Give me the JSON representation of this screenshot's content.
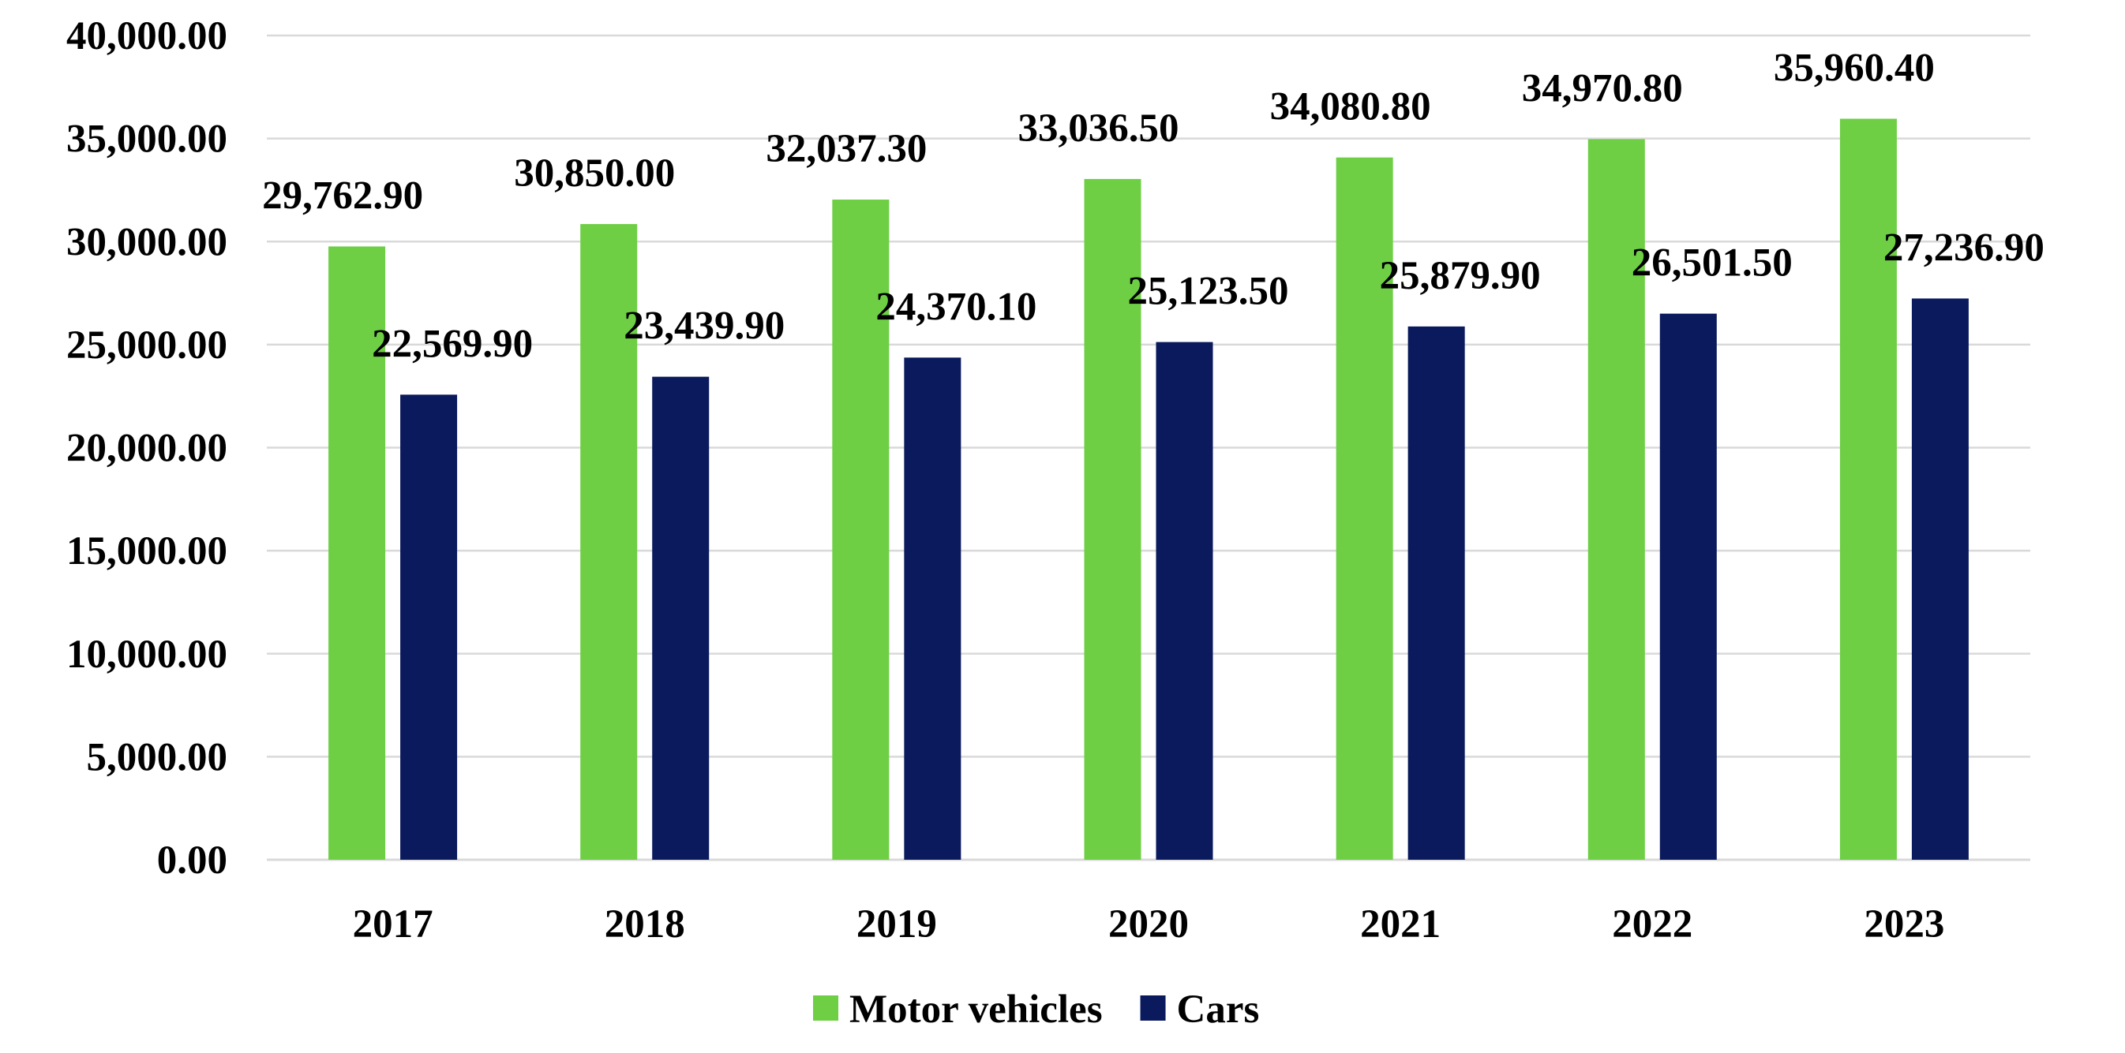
{
  "chart_data": {
    "type": "bar",
    "title": "",
    "xlabel": "",
    "ylabel": "",
    "categories": [
      "2017",
      "2018",
      "2019",
      "2020",
      "2021",
      "2022",
      "2023"
    ],
    "series": [
      {
        "name": "Motor vehicles",
        "color": "#6ecf45",
        "values": [
          29762.9,
          30850.0,
          32037.3,
          33036.5,
          34080.8,
          34970.8,
          35960.4
        ],
        "labels": [
          "29,762.90",
          "30,850.00",
          "32,037.30",
          "33,036.50",
          "34,080.80",
          "34,970.80",
          "35,960.40"
        ]
      },
      {
        "name": "Cars",
        "color": "#0a1a5c",
        "values": [
          22569.9,
          23439.9,
          24370.1,
          25123.5,
          25879.9,
          26501.5,
          27236.9
        ],
        "labels": [
          "22,569.90",
          "23,439.90",
          "24,370.10",
          "25,123.50",
          "25,879.90",
          "26,501.50",
          "27,236.90"
        ]
      }
    ],
    "ylim": [
      0,
      40000
    ],
    "yticks": [
      0,
      5000,
      10000,
      15000,
      20000,
      25000,
      30000,
      35000,
      40000
    ],
    "ytick_labels": [
      "0.00",
      "5,000.00",
      "10,000.00",
      "15,000.00",
      "20,000.00",
      "25,000.00",
      "30,000.00",
      "35,000.00",
      "40,000.00"
    ],
    "grid": true,
    "legend_position": "bottom"
  }
}
